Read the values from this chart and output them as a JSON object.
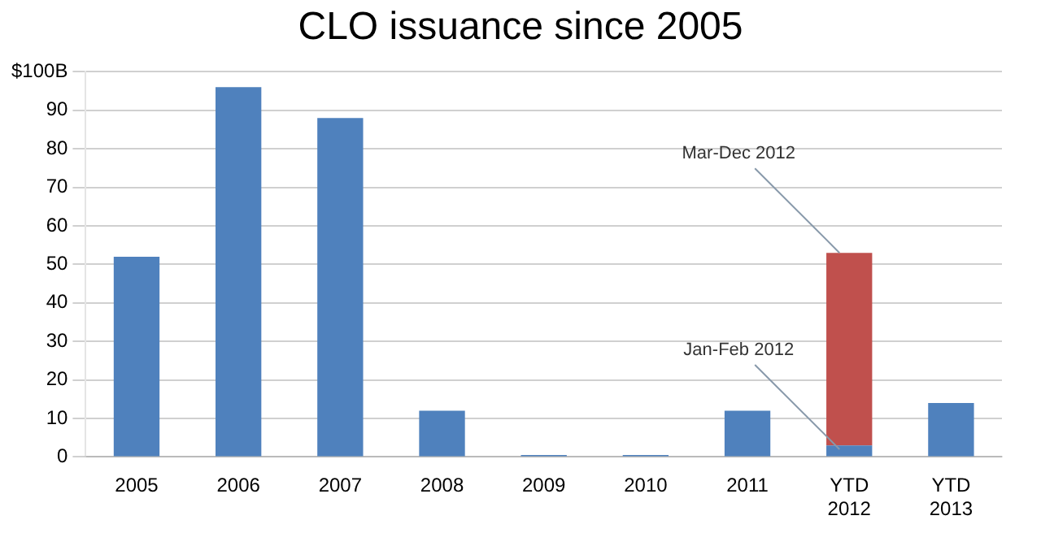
{
  "chart_data": {
    "type": "bar",
    "title": "CLO issuance since 2005",
    "categories": [
      "2005",
      "2006",
      "2007",
      "2008",
      "2009",
      "2010",
      "2011",
      "YTD 2012",
      "YTD 2013"
    ],
    "stacked": true,
    "series": [
      {
        "color": "#4f81bd",
        "values": [
          52,
          96,
          88,
          12,
          0.5,
          0.5,
          12,
          3,
          14
        ]
      },
      {
        "color": "#c0504d",
        "values": [
          null,
          null,
          null,
          null,
          null,
          null,
          null,
          50,
          null
        ]
      }
    ],
    "ylim": [
      0,
      100
    ],
    "yticks": [
      0,
      10,
      20,
      30,
      40,
      50,
      60,
      70,
      80,
      90,
      {
        "value": 100,
        "label": "$100B"
      }
    ],
    "grid": "y",
    "annotations": [
      {
        "text": "Mar-Dec 2012",
        "x": "YTD 2012",
        "y": 53
      },
      {
        "text": "Jan-Feb 2012",
        "x": "YTD 2012",
        "y": 2
      }
    ]
  }
}
